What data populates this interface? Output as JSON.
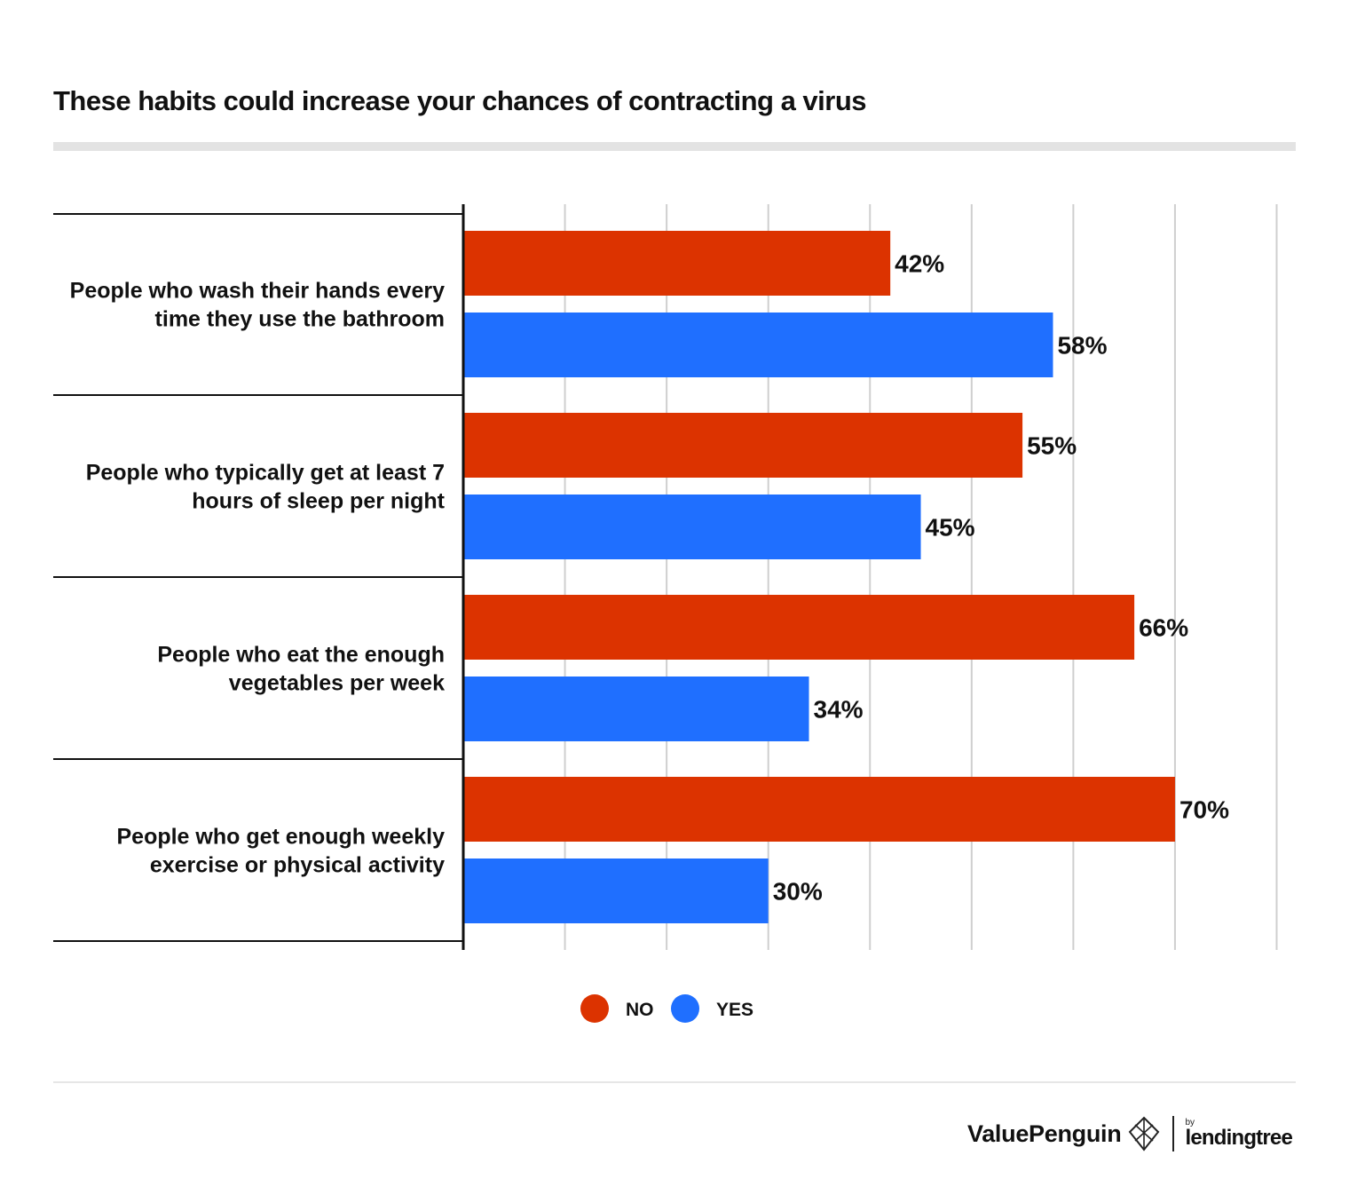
{
  "chart_data": {
    "type": "bar",
    "orientation": "horizontal",
    "title": "These habits could increase your chances of contracting a virus",
    "categories": [
      [
        "People who wash their hands every",
        "time they use the bathroom"
      ],
      [
        "People who typically get at least 7",
        "hours of sleep per night"
      ],
      [
        "People who eat the enough",
        "vegetables per week"
      ],
      [
        "People who get enough weekly",
        "exercise or physical activity"
      ]
    ],
    "series": [
      {
        "name": "NO",
        "color": "#dc3300",
        "values": [
          42,
          55,
          66,
          70
        ]
      },
      {
        "name": "YES",
        "color": "#1f6fff",
        "values": [
          58,
          45,
          34,
          30
        ]
      }
    ],
    "value_suffix": "%",
    "xlim": [
      0,
      80
    ],
    "grid": true,
    "legend": "bottom-center"
  },
  "footer": {
    "brand_name": "ValuePenguin",
    "by_text": "by",
    "partner": "lendingtree"
  }
}
